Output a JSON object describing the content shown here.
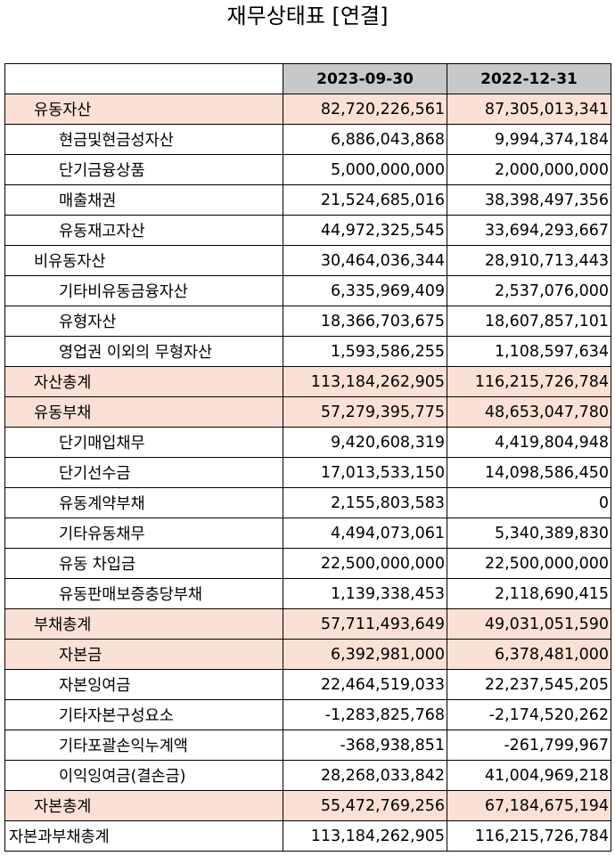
{
  "title": "재무상태표 [연결]",
  "columns": [
    "2023-09-30",
    "2022-12-31"
  ],
  "rows": [
    {
      "label": "유동자산",
      "v1": "82,720,226,561",
      "v2": "87,305,013,341"
    },
    {
      "label": "현금및현금성자산",
      "v1": "6,886,043,868",
      "v2": "9,994,374,184"
    },
    {
      "label": "단기금융상품",
      "v1": "5,000,000,000",
      "v2": "2,000,000,000"
    },
    {
      "label": "매출채권",
      "v1": "21,524,685,016",
      "v2": "38,398,497,356"
    },
    {
      "label": "유동재고자산",
      "v1": "44,972,325,545",
      "v2": "33,694,293,667"
    },
    {
      "label": "비유동자산",
      "v1": "30,464,036,344",
      "v2": "28,910,713,443"
    },
    {
      "label": "기타비유동금융자산",
      "v1": "6,335,969,409",
      "v2": "2,537,076,000"
    },
    {
      "label": "유형자산",
      "v1": "18,366,703,675",
      "v2": "18,607,857,101"
    },
    {
      "label": "영업권 이외의 무형자산",
      "v1": "1,593,586,255",
      "v2": "1,108,597,634"
    },
    {
      "label": "자산총계",
      "v1": "113,184,262,905",
      "v2": "116,215,726,784"
    },
    {
      "label": "유동부채",
      "v1": "57,279,395,775",
      "v2": "48,653,047,780"
    },
    {
      "label": "단기매입채무",
      "v1": "9,420,608,319",
      "v2": "4,419,804,948"
    },
    {
      "label": "단기선수금",
      "v1": "17,013,533,150",
      "v2": "14,098,586,450"
    },
    {
      "label": "유동계약부채",
      "v1": "2,155,803,583",
      "v2": "0"
    },
    {
      "label": "기타유동채무",
      "v1": "4,494,073,061",
      "v2": "5,340,389,830"
    },
    {
      "label": "유동 차입금",
      "v1": "22,500,000,000",
      "v2": "22,500,000,000"
    },
    {
      "label": "유동판매보증충당부채",
      "v1": "1,139,338,453",
      "v2": "2,118,690,415"
    },
    {
      "label": "부채총계",
      "v1": "57,711,493,649",
      "v2": "49,031,051,590"
    },
    {
      "label": "자본금",
      "v1": "6,392,981,000",
      "v2": "6,378,481,000"
    },
    {
      "label": "자본잉여금",
      "v1": "22,464,519,033",
      "v2": "22,237,545,205"
    },
    {
      "label": "기타자본구성요소",
      "v1": "-1,283,825,768",
      "v2": "-2,174,520,262"
    },
    {
      "label": "기타포괄손익누계액",
      "v1": "-368,938,851",
      "v2": "-261,799,967"
    },
    {
      "label": "이익잉여금(결손금)",
      "v1": "28,268,033,842",
      "v2": "41,004,969,218"
    },
    {
      "label": "자본총계",
      "v1": "55,472,769,256",
      "v2": "67,184,675,194"
    },
    {
      "label": "자본과부채총계",
      "v1": "113,184,262,905",
      "v2": "116,215,726,784"
    }
  ],
  "colors": {
    "header_bg": "#c8c8c8",
    "highlight_bg": "#fbe1d5",
    "border": "#000000"
  }
}
